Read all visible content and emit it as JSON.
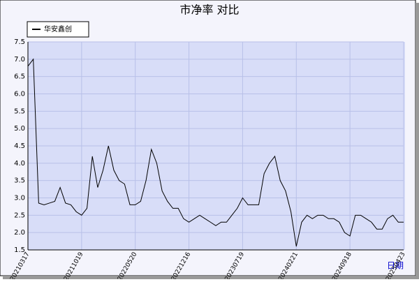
{
  "chart_data": {
    "type": "line",
    "title": "市净率  对比",
    "x_label": "日期",
    "categories": [
      "20210317",
      null,
      null,
      null,
      null,
      null,
      null,
      null,
      null,
      null,
      "20211019",
      null,
      null,
      null,
      null,
      null,
      null,
      null,
      null,
      null,
      "20220520",
      null,
      null,
      null,
      null,
      null,
      null,
      null,
      null,
      null,
      "20221216",
      null,
      null,
      null,
      null,
      null,
      null,
      null,
      null,
      null,
      "20230719",
      null,
      null,
      null,
      null,
      null,
      null,
      null,
      null,
      null,
      "20240221",
      null,
      null,
      null,
      null,
      null,
      null,
      null,
      null,
      null,
      "20240918",
      null,
      null,
      null,
      null,
      null,
      null,
      null,
      null,
      null,
      "20250423"
    ],
    "series": [
      {
        "name": "华安鑫创",
        "color": "#000000",
        "values": [
          6.8,
          7.0,
          2.85,
          2.8,
          2.85,
          2.9,
          3.3,
          2.85,
          2.8,
          2.6,
          2.5,
          2.7,
          4.2,
          3.3,
          3.8,
          4.5,
          3.8,
          3.5,
          3.4,
          2.8,
          2.8,
          2.9,
          3.5,
          4.4,
          4.0,
          3.2,
          2.9,
          2.7,
          2.7,
          2.4,
          2.3,
          2.4,
          2.5,
          2.4,
          2.3,
          2.2,
          2.3,
          2.3,
          2.5,
          2.7,
          3.0,
          2.8,
          2.8,
          2.8,
          3.7,
          4.0,
          4.2,
          3.5,
          3.2,
          2.6,
          1.6,
          2.3,
          2.5,
          2.4,
          2.5,
          2.5,
          2.4,
          2.4,
          2.3,
          2.0,
          1.9,
          2.5,
          2.5,
          2.4,
          2.3,
          2.1,
          2.1,
          2.4,
          2.5,
          2.3,
          2.3
        ]
      }
    ],
    "ylim": [
      1.5,
      7.5
    ],
    "yticks": [
      1.5,
      {
        "value": 2,
        "label": "2.0"
      },
      2.5,
      {
        "value": 3,
        "label": "3.0"
      },
      3.5,
      {
        "value": 4,
        "label": "4.0"
      },
      4.5,
      {
        "value": 5,
        "label": "5.0"
      },
      5.5,
      {
        "value": 6,
        "label": "6.0"
      },
      6.5,
      {
        "value": 7,
        "label": "7.0"
      },
      7.5
    ],
    "grid": true,
    "legend": "top-left"
  }
}
